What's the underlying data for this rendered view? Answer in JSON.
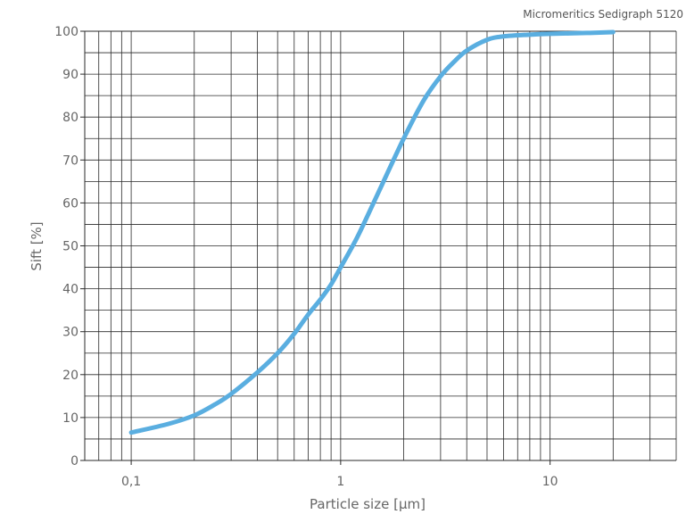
{
  "chart_data": {
    "type": "line",
    "annotation": "Micromeritics Sedigraph 5120",
    "xlabel": "Particle size [µm]",
    "ylabel": "Sift [%]",
    "xscale": "log",
    "xlim": [
      0.06,
      40
    ],
    "ylim": [
      0,
      100
    ],
    "xticks": [
      {
        "value": 0.1,
        "label": "0,1"
      },
      {
        "value": 1,
        "label": "1"
      },
      {
        "value": 10,
        "label": "10"
      }
    ],
    "yticks": [
      0,
      10,
      20,
      30,
      40,
      50,
      60,
      70,
      80,
      90,
      100
    ],
    "grid": true,
    "legend": "none",
    "color": "#5aaee0",
    "series": [
      {
        "x": [
          0.1,
          0.15,
          0.2,
          0.25,
          0.3,
          0.4,
          0.5,
          0.6,
          0.7,
          0.8,
          0.9,
          1.0,
          1.2,
          1.5,
          2.0,
          2.5,
          3.0,
          3.5,
          4.0,
          5.0,
          6.0,
          8.0,
          10.0,
          15.0,
          20.0
        ],
        "y": [
          6.5,
          8.5,
          10.5,
          13,
          15.5,
          20.5,
          25,
          29.5,
          34,
          37.5,
          41,
          45,
          52,
          62,
          75,
          84,
          89.5,
          93,
          95.5,
          98,
          98.8,
          99.2,
          99.4,
          99.6,
          99.8
        ]
      }
    ]
  }
}
